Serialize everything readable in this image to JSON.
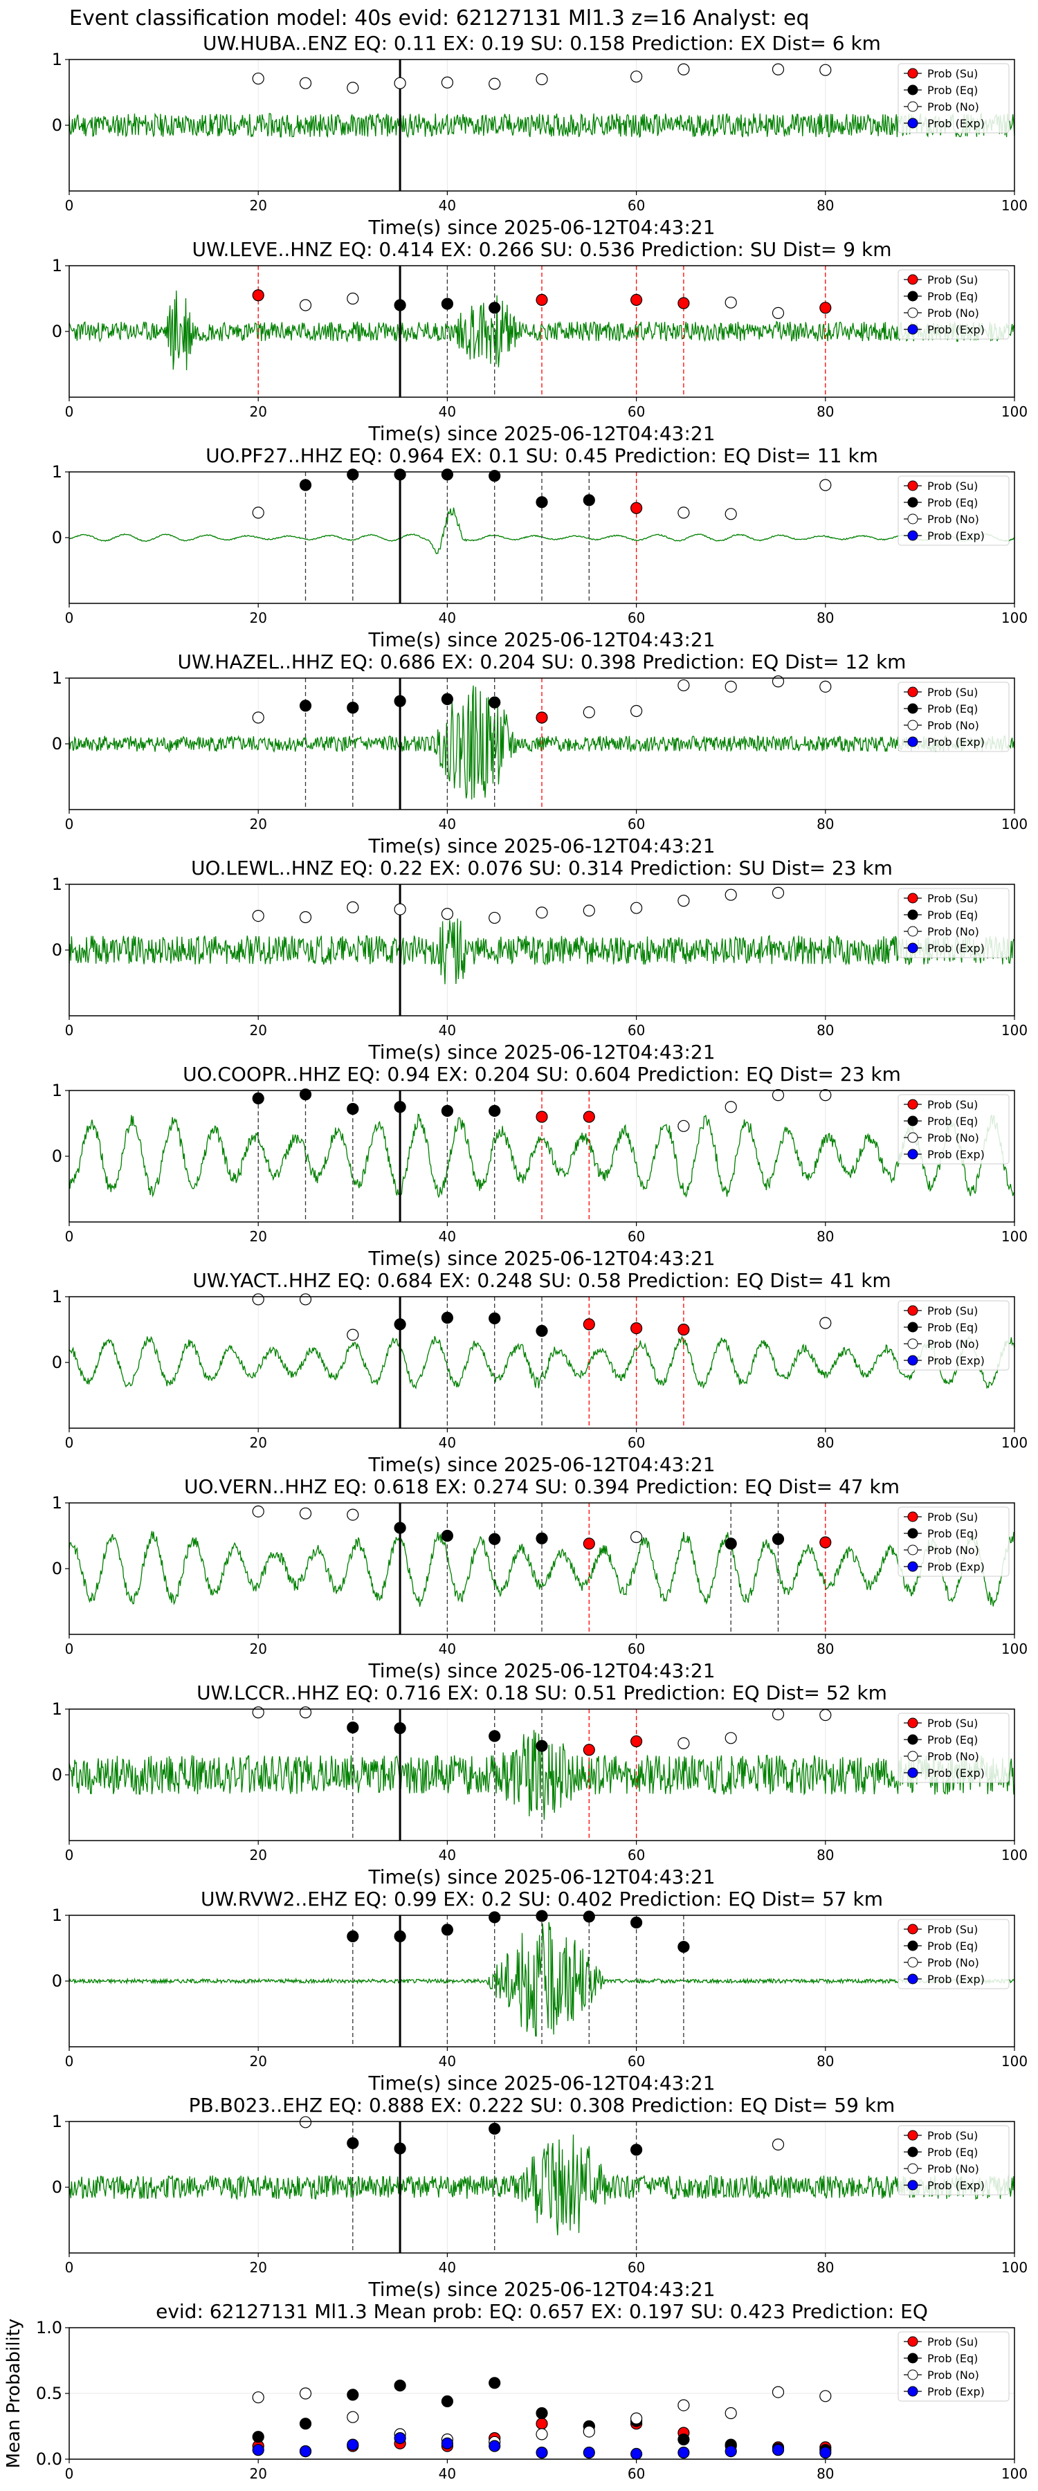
{
  "figure_title": "Event classification model: 40s evid: 62127131 Ml1.3 z=16 Analyst: eq",
  "legend_labels": [
    "Prob (Su)",
    "Prob (Eq)",
    "Prob (No)",
    "Prob (Exp)"
  ],
  "colors": {
    "su": "#ff0000",
    "eq": "#000000",
    "no": "#ffffff",
    "exp": "#0000ff",
    "waveform": "#008000"
  },
  "chart_data": [
    {
      "type": "line",
      "title": "UW.HUBA..ENZ   EQ: 0.11  EX: 0.19  SU: 0.158   Prediction: EX    Dist= 6 km",
      "xlabel": "Time(s) since 2025-06-12T04:43:21",
      "xlim": [
        0,
        100
      ],
      "ylim": [
        -1,
        1
      ],
      "x_ticks": [
        "0",
        "20",
        "40",
        "60",
        "80",
        "100"
      ],
      "y_ticks": [
        "1",
        "0"
      ],
      "pick_line_x": 35,
      "waveform": {
        "style": "noise",
        "amp": 0.18,
        "burst": [],
        "seed": 11
      },
      "prob_su": [],
      "prob_eq": [],
      "prob_no": [
        [
          20,
          0.71
        ],
        [
          25,
          0.64
        ],
        [
          30,
          0.57
        ],
        [
          35,
          0.64
        ],
        [
          40,
          0.65
        ],
        [
          45,
          0.63
        ],
        [
          50,
          0.7
        ],
        [
          60,
          0.74
        ],
        [
          65,
          0.85
        ],
        [
          75,
          0.85
        ],
        [
          80,
          0.84
        ]
      ],
      "prob_exp": [],
      "red_dashed_x": [],
      "black_dashed_x": []
    },
    {
      "type": "line",
      "title": "UW.LEVE..HNZ   EQ: 0.414  EX: 0.266  SU: 0.536   Prediction: SU    Dist= 9 km",
      "xlabel": "Time(s) since 2025-06-12T04:43:21",
      "xlim": [
        0,
        100
      ],
      "ylim": [
        -1,
        1
      ],
      "x_ticks": [
        "0",
        "20",
        "40",
        "60",
        "80",
        "100"
      ],
      "y_ticks": [
        "1",
        "0"
      ],
      "pick_line_x": 35,
      "waveform": {
        "style": "noise",
        "amp": 0.15,
        "burst": [
          [
            10,
            15,
            0.8
          ],
          [
            40,
            52,
            0.6
          ]
        ],
        "seed": 23
      },
      "prob_su": [
        [
          20,
          0.55
        ],
        [
          50,
          0.48
        ],
        [
          60,
          0.48
        ],
        [
          65,
          0.43
        ],
        [
          80,
          0.36
        ]
      ],
      "prob_eq": [
        [
          35,
          0.4
        ],
        [
          40,
          0.42
        ],
        [
          45,
          0.36
        ]
      ],
      "prob_no": [
        [
          25,
          0.4
        ],
        [
          30,
          0.5
        ],
        [
          70,
          0.44
        ],
        [
          75,
          0.28
        ]
      ],
      "prob_exp": [],
      "red_dashed_x": [
        20,
        50,
        60,
        65,
        80
      ],
      "black_dashed_x": [
        40,
        45
      ]
    },
    {
      "type": "line",
      "title": "UO.PF27..HHZ   EQ: 0.964  EX: 0.1  SU: 0.45   Prediction: EQ    Dist= 11 km",
      "xlabel": "Time(s) since 2025-06-12T04:43:21",
      "xlim": [
        0,
        100
      ],
      "ylim": [
        -1,
        1
      ],
      "x_ticks": [
        "0",
        "20",
        "40",
        "60",
        "80",
        "100"
      ],
      "y_ticks": [
        "1",
        "0"
      ],
      "pick_line_x": 35,
      "waveform": {
        "style": "wave",
        "amp": 0.05,
        "burst": [
          [
            38,
            44,
            0.45
          ]
        ],
        "seed": 37
      },
      "prob_su": [
        [
          60,
          0.45
        ]
      ],
      "prob_eq": [
        [
          25,
          0.8
        ],
        [
          30,
          0.96
        ],
        [
          35,
          0.96
        ],
        [
          40,
          0.96
        ],
        [
          45,
          0.94
        ],
        [
          50,
          0.54
        ],
        [
          55,
          0.57
        ]
      ],
      "prob_no": [
        [
          20,
          0.38
        ],
        [
          65,
          0.38
        ],
        [
          70,
          0.36
        ],
        [
          80,
          0.8
        ]
      ],
      "prob_exp": [],
      "red_dashed_x": [
        60
      ],
      "black_dashed_x": [
        25,
        30,
        40,
        45,
        50,
        55
      ]
    },
    {
      "type": "line",
      "title": "UW.HAZEL..HHZ   EQ: 0.686  EX: 0.204  SU: 0.398   Prediction: EQ    Dist= 12 km",
      "xlabel": "Time(s) since 2025-06-12T04:43:21",
      "xlim": [
        0,
        100
      ],
      "ylim": [
        -1,
        1
      ],
      "x_ticks": [
        "0",
        "20",
        "40",
        "60",
        "80",
        "100"
      ],
      "y_ticks": [
        "1",
        "0"
      ],
      "pick_line_x": 35,
      "waveform": {
        "style": "noise",
        "amp": 0.12,
        "burst": [
          [
            38,
            52,
            0.9
          ]
        ],
        "seed": 41
      },
      "prob_su": [
        [
          50,
          0.4
        ]
      ],
      "prob_eq": [
        [
          25,
          0.58
        ],
        [
          30,
          0.55
        ],
        [
          35,
          0.65
        ],
        [
          40,
          0.68
        ],
        [
          45,
          0.63
        ]
      ],
      "prob_no": [
        [
          20,
          0.4
        ],
        [
          55,
          0.48
        ],
        [
          60,
          0.5
        ],
        [
          65,
          0.89
        ],
        [
          70,
          0.87
        ],
        [
          75,
          0.95
        ],
        [
          80,
          0.87
        ]
      ],
      "prob_exp": [],
      "red_dashed_x": [
        50
      ],
      "black_dashed_x": [
        25,
        30,
        40,
        45
      ]
    },
    {
      "type": "line",
      "title": "UO.LEWL..HNZ   EQ: 0.22  EX: 0.076  SU: 0.314   Prediction: SU    Dist= 23 km",
      "xlabel": "Time(s) since 2025-06-12T04:43:21",
      "xlim": [
        0,
        100
      ],
      "ylim": [
        -1,
        1
      ],
      "x_ticks": [
        "0",
        "20",
        "40",
        "60",
        "80",
        "100"
      ],
      "y_ticks": [
        "1",
        "0"
      ],
      "pick_line_x": 35,
      "waveform": {
        "style": "noise",
        "amp": 0.22,
        "burst": [
          [
            38,
            45,
            0.6
          ]
        ],
        "seed": 53
      },
      "prob_su": [],
      "prob_eq": [],
      "prob_no": [
        [
          20,
          0.52
        ],
        [
          25,
          0.5
        ],
        [
          30,
          0.65
        ],
        [
          35,
          0.62
        ],
        [
          40,
          0.55
        ],
        [
          45,
          0.49
        ],
        [
          50,
          0.57
        ],
        [
          55,
          0.6
        ],
        [
          60,
          0.64
        ],
        [
          65,
          0.75
        ],
        [
          70,
          0.84
        ],
        [
          75,
          0.87
        ]
      ],
      "prob_exp": [],
      "red_dashed_x": [],
      "black_dashed_x": []
    },
    {
      "type": "line",
      "title": "UO.COOPR..HHZ   EQ: 0.94  EX: 0.204  SU: 0.604   Prediction: EQ    Dist= 23 km",
      "xlabel": "Time(s) since 2025-06-12T04:43:21",
      "xlim": [
        0,
        100
      ],
      "ylim": [
        -1,
        1
      ],
      "x_ticks": [
        "0",
        "20",
        "40",
        "60",
        "80",
        "100"
      ],
      "y_ticks": [
        "1",
        "0"
      ],
      "pick_line_x": 35,
      "waveform": {
        "style": "wave",
        "amp": 0.55,
        "burst": [
          [
            38,
            48,
            0.5
          ]
        ],
        "seed": 61
      },
      "prob_su": [
        [
          50,
          0.6
        ],
        [
          55,
          0.6
        ]
      ],
      "prob_eq": [
        [
          20,
          0.88
        ],
        [
          25,
          0.94
        ],
        [
          30,
          0.72
        ],
        [
          35,
          0.75
        ],
        [
          40,
          0.69
        ],
        [
          45,
          0.69
        ]
      ],
      "prob_no": [
        [
          65,
          0.46
        ],
        [
          70,
          0.75
        ],
        [
          75,
          0.93
        ],
        [
          80,
          0.93
        ]
      ],
      "prob_exp": [],
      "red_dashed_x": [
        50,
        55
      ],
      "black_dashed_x": [
        20,
        25,
        30,
        40,
        45
      ]
    },
    {
      "type": "line",
      "title": "UW.YACT..HHZ   EQ: 0.684  EX: 0.248  SU: 0.58   Prediction: EQ    Dist= 41 km",
      "xlabel": "Time(s) since 2025-06-12T04:43:21",
      "xlim": [
        0,
        100
      ],
      "ylim": [
        -1,
        1
      ],
      "x_ticks": [
        "0",
        "20",
        "40",
        "60",
        "80",
        "100"
      ],
      "y_ticks": [
        "1",
        "0"
      ],
      "pick_line_x": 35,
      "waveform": {
        "style": "wave",
        "amp": 0.35,
        "burst": [
          [
            46,
            56,
            0.6
          ]
        ],
        "seed": 71
      },
      "prob_su": [
        [
          55,
          0.58
        ],
        [
          60,
          0.52
        ],
        [
          65,
          0.5
        ]
      ],
      "prob_eq": [
        [
          35,
          0.58
        ],
        [
          40,
          0.68
        ],
        [
          45,
          0.67
        ],
        [
          50,
          0.48
        ]
      ],
      "prob_no": [
        [
          20,
          0.96
        ],
        [
          25,
          0.96
        ],
        [
          30,
          0.42
        ],
        [
          80,
          0.6
        ]
      ],
      "prob_exp": [],
      "red_dashed_x": [
        55,
        60,
        65
      ],
      "black_dashed_x": [
        40,
        45,
        50
      ]
    },
    {
      "type": "line",
      "title": "UO.VERN..HHZ   EQ: 0.618  EX: 0.274  SU: 0.394   Prediction: EQ    Dist= 47 km",
      "xlabel": "Time(s) since 2025-06-12T04:43:21",
      "xlim": [
        0,
        100
      ],
      "ylim": [
        -1,
        1
      ],
      "x_ticks": [
        "0",
        "20",
        "40",
        "60",
        "80",
        "100"
      ],
      "y_ticks": [
        "1",
        "0"
      ],
      "pick_line_x": 35,
      "waveform": {
        "style": "wave",
        "amp": 0.5,
        "burst": [
          [
            40,
            50,
            0.3
          ],
          [
            75,
            84,
            0.4
          ]
        ],
        "seed": 83
      },
      "prob_su": [
        [
          55,
          0.38
        ],
        [
          80,
          0.4
        ]
      ],
      "prob_eq": [
        [
          35,
          0.62
        ],
        [
          40,
          0.5
        ],
        [
          45,
          0.45
        ],
        [
          50,
          0.46
        ],
        [
          70,
          0.38
        ],
        [
          75,
          0.45
        ]
      ],
      "prob_no": [
        [
          20,
          0.87
        ],
        [
          25,
          0.84
        ],
        [
          30,
          0.82
        ],
        [
          60,
          0.48
        ]
      ],
      "prob_exp": [],
      "red_dashed_x": [
        55,
        80
      ],
      "black_dashed_x": [
        40,
        45,
        50,
        70,
        75
      ]
    },
    {
      "type": "line",
      "title": "UW.LCCR..HHZ   EQ: 0.716  EX: 0.18  SU: 0.51   Prediction: EQ    Dist= 52 km",
      "xlabel": "Time(s) since 2025-06-12T04:43:21",
      "xlim": [
        0,
        100
      ],
      "ylim": [
        -1,
        1
      ],
      "x_ticks": [
        "0",
        "20",
        "40",
        "60",
        "80",
        "100"
      ],
      "y_ticks": [
        "1",
        "0"
      ],
      "pick_line_x": 35,
      "waveform": {
        "style": "noise",
        "amp": 0.3,
        "burst": [
          [
            44,
            60,
            0.7
          ]
        ],
        "seed": 97
      },
      "prob_su": [
        [
          55,
          0.38
        ],
        [
          60,
          0.51
        ]
      ],
      "prob_eq": [
        [
          30,
          0.72
        ],
        [
          35,
          0.71
        ],
        [
          45,
          0.59
        ],
        [
          50,
          0.44
        ]
      ],
      "prob_no": [
        [
          20,
          0.95
        ],
        [
          25,
          0.95
        ],
        [
          65,
          0.48
        ],
        [
          70,
          0.56
        ],
        [
          75,
          0.92
        ],
        [
          80,
          0.91
        ]
      ],
      "prob_exp": [],
      "red_dashed_x": [
        55,
        60
      ],
      "black_dashed_x": [
        30,
        45,
        50
      ]
    },
    {
      "type": "line",
      "title": "UW.RVW2..EHZ   EQ: 0.99  EX: 0.2  SU: 0.402   Prediction: EQ    Dist= 57 km",
      "xlabel": "Time(s) since 2025-06-12T04:43:21",
      "xlim": [
        0,
        100
      ],
      "ylim": [
        -1,
        1
      ],
      "x_ticks": [
        "0",
        "20",
        "40",
        "60",
        "80",
        "100"
      ],
      "y_ticks": [
        "1",
        "0"
      ],
      "pick_line_x": 35,
      "waveform": {
        "style": "noise",
        "amp": 0.03,
        "burst": [
          [
            44,
            62,
            0.9
          ]
        ],
        "seed": 101
      },
      "prob_su": [],
      "prob_eq": [
        [
          30,
          0.68
        ],
        [
          35,
          0.68
        ],
        [
          40,
          0.78
        ],
        [
          45,
          0.97
        ],
        [
          50,
          0.99
        ],
        [
          55,
          0.98
        ],
        [
          60,
          0.89
        ],
        [
          65,
          0.52
        ]
      ],
      "prob_no": [],
      "prob_exp": [],
      "red_dashed_x": [],
      "black_dashed_x": [
        30,
        40,
        45,
        50,
        55,
        60,
        65
      ]
    },
    {
      "type": "line",
      "title": "PB.B023..EHZ   EQ: 0.888  EX: 0.222  SU: 0.308   Prediction: EQ    Dist= 59 km",
      "xlabel": "Time(s) since 2025-06-12T04:43:21",
      "xlim": [
        0,
        100
      ],
      "ylim": [
        -1,
        1
      ],
      "x_ticks": [
        "0",
        "20",
        "40",
        "60",
        "80",
        "100"
      ],
      "y_ticks": [
        "1",
        "0"
      ],
      "pick_line_x": 35,
      "waveform": {
        "style": "noise",
        "amp": 0.18,
        "burst": [
          [
            47,
            62,
            0.9
          ]
        ],
        "seed": 113
      },
      "prob_su": [],
      "prob_eq": [
        [
          30,
          0.67
        ],
        [
          35,
          0.59
        ],
        [
          45,
          0.89
        ],
        [
          60,
          0.57
        ]
      ],
      "prob_no": [
        [
          25,
          0.99
        ],
        [
          75,
          0.65
        ]
      ],
      "prob_exp": [],
      "red_dashed_x": [],
      "black_dashed_x": [
        30,
        45,
        60
      ]
    },
    {
      "type": "scatter",
      "title": "evid: 62127131  Ml1.3   Mean prob:   EQ: 0.657  EX: 0.197  SU: 0.423   Prediction: EQ",
      "ylabel": "Mean Probability",
      "xlim": [
        0,
        100
      ],
      "ylim": [
        0,
        1
      ],
      "x_ticks": [
        "0",
        "20",
        "40",
        "60",
        "80",
        "100"
      ],
      "y_ticks": [
        "1.0",
        "0.5",
        "0.0"
      ],
      "prob_su": [
        [
          20,
          0.1
        ],
        [
          25,
          0.06
        ],
        [
          30,
          0.1
        ],
        [
          35,
          0.12
        ],
        [
          40,
          0.1
        ],
        [
          45,
          0.16
        ],
        [
          50,
          0.27
        ],
        [
          55,
          0.25
        ],
        [
          60,
          0.27
        ],
        [
          65,
          0.2
        ],
        [
          70,
          0.1
        ],
        [
          75,
          0.09
        ],
        [
          80,
          0.09
        ]
      ],
      "prob_eq": [
        [
          20,
          0.17
        ],
        [
          25,
          0.27
        ],
        [
          30,
          0.49
        ],
        [
          35,
          0.56
        ],
        [
          40,
          0.44
        ],
        [
          45,
          0.58
        ],
        [
          50,
          0.35
        ],
        [
          55,
          0.25
        ],
        [
          60,
          0.29
        ],
        [
          65,
          0.15
        ],
        [
          70,
          0.11
        ],
        [
          75,
          0.08
        ],
        [
          80,
          0.07
        ]
      ],
      "prob_no": [
        [
          20,
          0.47
        ],
        [
          25,
          0.5
        ],
        [
          30,
          0.32
        ],
        [
          35,
          0.19
        ],
        [
          40,
          0.15
        ],
        [
          45,
          0.13
        ],
        [
          50,
          0.19
        ],
        [
          55,
          0.21
        ],
        [
          60,
          0.31
        ],
        [
          65,
          0.41
        ],
        [
          70,
          0.35
        ],
        [
          75,
          0.51
        ],
        [
          80,
          0.48
        ]
      ],
      "prob_exp": [
        [
          20,
          0.07
        ],
        [
          25,
          0.06
        ],
        [
          30,
          0.11
        ],
        [
          35,
          0.16
        ],
        [
          40,
          0.12
        ],
        [
          45,
          0.1
        ],
        [
          50,
          0.05
        ],
        [
          55,
          0.05
        ],
        [
          60,
          0.04
        ],
        [
          65,
          0.05
        ],
        [
          70,
          0.06
        ],
        [
          75,
          0.07
        ],
        [
          80,
          0.05
        ]
      ]
    }
  ]
}
